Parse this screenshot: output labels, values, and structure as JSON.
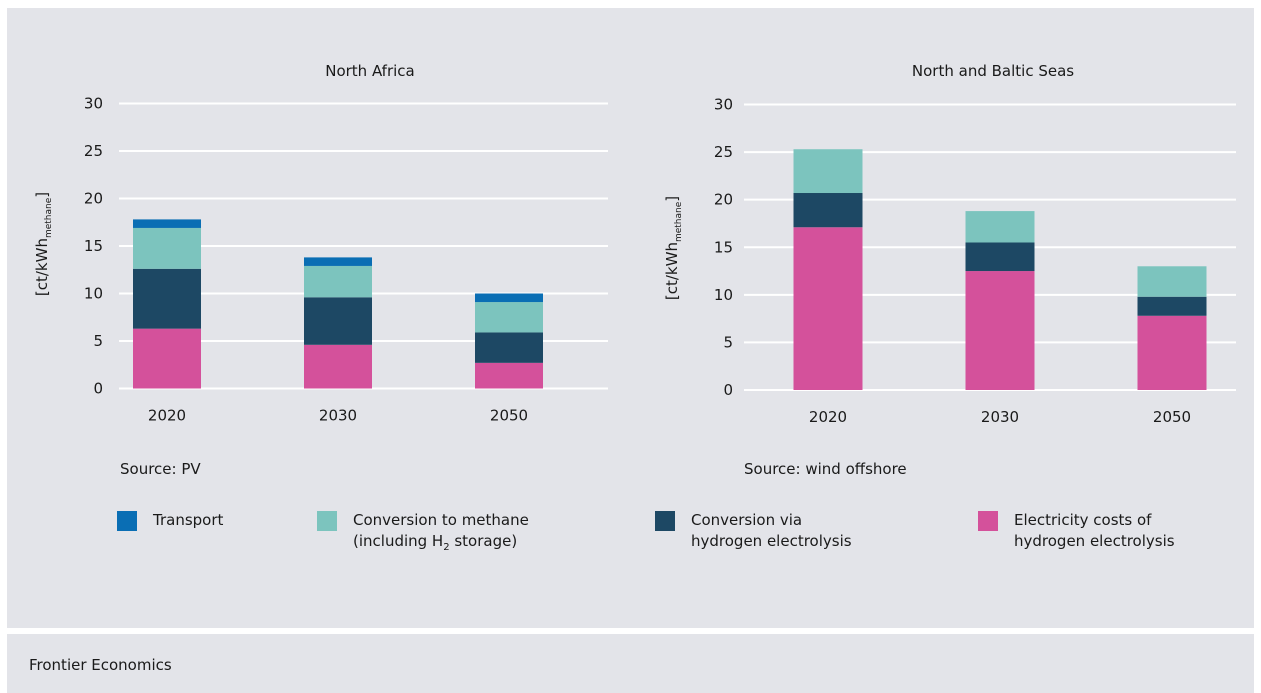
{
  "colors": {
    "transport": "#0a6eb4",
    "methane": "#7cc4be",
    "electrolysis": "#1d4864",
    "electricity": "#d4519b",
    "grid": "#ffffff",
    "background": "#e3e4e9"
  },
  "chart_data": [
    {
      "type": "bar",
      "stacked": true,
      "title": "North Africa",
      "ylabel_main": "[ct/kWh",
      "ylabel_sub": "methane",
      "ylabel_close": "]",
      "categories": [
        "2020",
        "2030",
        "2050"
      ],
      "yticks": [
        "0",
        "5",
        "10",
        "15",
        "20",
        "25",
        "30"
      ],
      "ylim": [
        0,
        30
      ],
      "grid": true,
      "series": [
        {
          "key": "electricity",
          "values": [
            6.3,
            4.6,
            2.7
          ]
        },
        {
          "key": "electrolysis",
          "values": [
            6.3,
            5.0,
            3.2
          ]
        },
        {
          "key": "methane",
          "values": [
            4.3,
            3.3,
            3.2
          ]
        },
        {
          "key": "transport",
          "values": [
            0.9,
            0.9,
            0.9
          ]
        }
      ],
      "source": "Source: PV"
    },
    {
      "type": "bar",
      "stacked": true,
      "title": "North and Baltic Seas",
      "ylabel_main": "[ct/kWh",
      "ylabel_sub": "methane",
      "ylabel_close": "]",
      "categories": [
        "2020",
        "2030",
        "2050"
      ],
      "yticks": [
        "0",
        "5",
        "10",
        "15",
        "20",
        "25",
        "30"
      ],
      "ylim": [
        0,
        30
      ],
      "grid": true,
      "series": [
        {
          "key": "electricity",
          "values": [
            17.1,
            12.5,
            7.8
          ]
        },
        {
          "key": "electrolysis",
          "values": [
            3.6,
            3.0,
            2.0
          ]
        },
        {
          "key": "methane",
          "values": [
            4.6,
            3.3,
            3.2
          ]
        }
      ],
      "source": "Source: wind offshore"
    }
  ],
  "legend": [
    {
      "key": "transport",
      "lines": [
        "Transport"
      ]
    },
    {
      "key": "methane",
      "line1": "Conversion to methane",
      "line2_pre": "(including H",
      "line2_sub": "2",
      "line2_post": " storage)"
    },
    {
      "key": "electrolysis",
      "lines": [
        "Conversion via",
        "hydrogen electrolysis"
      ]
    },
    {
      "key": "electricity",
      "lines": [
        "Electricity costs of",
        "hydrogen electrolysis"
      ]
    }
  ],
  "footer": {
    "text": "Frontier Economics"
  }
}
